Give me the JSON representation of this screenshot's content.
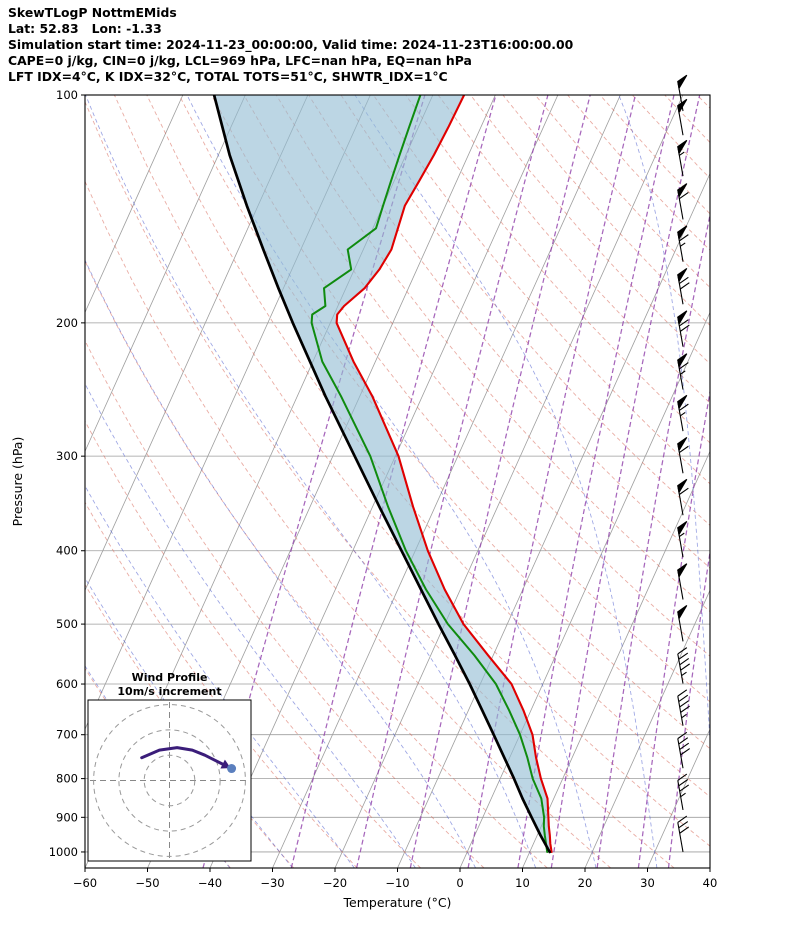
{
  "header": {
    "line1": "SkewTLogP NottmEMids",
    "line2": "Lat: 52.83   Lon: -1.33",
    "line3": "Simulation start time: 2024-11-23_00:00:00, Valid time: 2024-11-23T16:00:00.00",
    "line4": "CAPE=0 j/kg, CIN=0 j/kg, LCL=969 hPa, LFC=nan hPa, EQ=nan hPa",
    "line5": "LFT IDX=4°C, K IDX=32°C, TOTAL TOTS=51°C, SHWTR_IDX=1°C"
  },
  "chart_data": {
    "type": "line",
    "subtype": "skewt_logp",
    "title": "SkewTLogP NottmEMids",
    "xlabel": "Temperature (°C)",
    "ylabel": "Pressure (hPa)",
    "xlim": [
      -60,
      40
    ],
    "p_top": 100,
    "p_bottom": 1050,
    "skew": 0.45,
    "x_ticks": [
      -60,
      -50,
      -40,
      -30,
      -20,
      -10,
      0,
      10,
      20,
      30,
      40
    ],
    "y_ticks": [
      100,
      200,
      300,
      400,
      500,
      600,
      700,
      800,
      900,
      1000
    ],
    "grid": {
      "isobars": {
        "color": "#9e9e9e"
      },
      "isotherms": {
        "start": -100,
        "end": 40,
        "step": 10,
        "color": "#9e9e9e"
      },
      "dry_adiabats": {
        "start": -40,
        "end": 260,
        "step": 10,
        "color": "#d86a5a"
      },
      "moist_adiabats": {
        "start": -40,
        "end": 130,
        "step": 10,
        "color": "#4a5acd"
      },
      "mixing_ratio_g_kg": {
        "values": [
          0.1,
          0.4,
          1,
          2,
          4,
          7,
          10,
          16,
          24,
          32
        ],
        "color": "#9141ab"
      }
    },
    "series": [
      {
        "name": "temperature",
        "color": "#e00000",
        "width": 2.1,
        "pressure_hpa": [
          1000,
          975,
          950,
          925,
          900,
          850,
          800,
          750,
          700,
          650,
          600,
          550,
          500,
          450,
          400,
          350,
          300,
          250,
          225,
          200,
          195,
          190,
          180,
          170,
          160,
          150,
          140,
          130,
          120,
          110,
          100
        ],
        "temp_c": [
          13.5,
          12.7,
          12.0,
          11.2,
          10.5,
          9.0,
          6.5,
          4.2,
          2.0,
          -1.2,
          -5.0,
          -10.8,
          -17.0,
          -22.5,
          -28.0,
          -33.5,
          -39.5,
          -48.0,
          -53.5,
          -59.0,
          -59.5,
          -59.0,
          -57.0,
          -56.0,
          -55.5,
          -56.0,
          -56.5,
          -56.0,
          -55.5,
          -55.2,
          -55.0
        ]
      },
      {
        "name": "dewpoint",
        "color": "#0f8b0f",
        "width": 2.0,
        "pressure_hpa": [
          1000,
          975,
          950,
          925,
          900,
          850,
          800,
          750,
          700,
          650,
          600,
          550,
          500,
          450,
          400,
          350,
          300,
          250,
          225,
          200,
          195,
          190,
          180,
          170,
          160,
          150,
          140,
          130,
          120,
          110,
          100
        ],
        "temp_c": [
          12.8,
          12.0,
          11.2,
          10.4,
          9.8,
          8.0,
          5.2,
          2.8,
          0.0,
          -3.5,
          -7.5,
          -13.0,
          -19.5,
          -25.5,
          -31.5,
          -37.5,
          -44.0,
          -53.0,
          -58.5,
          -63.0,
          -63.5,
          -62.0,
          -63.5,
          -60.5,
          -62.5,
          -59.5,
          -60.0,
          -60.5,
          -61.0,
          -61.5,
          -62.0
        ]
      },
      {
        "name": "parcel",
        "color": "#000000",
        "width": 2.7,
        "pressure_hpa": [
          1000,
          950,
          900,
          850,
          800,
          750,
          700,
          650,
          600,
          550,
          500,
          450,
          400,
          350,
          300,
          250,
          200,
          180,
          160,
          140,
          120,
          100
        ],
        "temp_c": [
          13.2,
          10.5,
          7.8,
          5.0,
          2.2,
          -0.9,
          -4.2,
          -7.8,
          -11.7,
          -16.1,
          -21.0,
          -26.3,
          -32.2,
          -38.9,
          -46.5,
          -55.5,
          -66.0,
          -70.8,
          -76.0,
          -81.8,
          -88.2,
          -95.0
        ]
      }
    ],
    "shading": {
      "between": [
        "parcel",
        "temperature"
      ],
      "color": "#93bdd4",
      "opacity": 0.62
    },
    "wind_barbs_kt": [
      {
        "p": 1000,
        "kt": 30
      },
      {
        "p": 880,
        "kt": 35
      },
      {
        "p": 775,
        "kt": 40
      },
      {
        "p": 681,
        "kt": 45
      },
      {
        "p": 599,
        "kt": 45
      },
      {
        "p": 527,
        "kt": 50
      },
      {
        "p": 464,
        "kt": 50
      },
      {
        "p": 408,
        "kt": 55
      },
      {
        "p": 359,
        "kt": 60
      },
      {
        "p": 316,
        "kt": 60
      },
      {
        "p": 278,
        "kt": 65
      },
      {
        "p": 245,
        "kt": 65
      },
      {
        "p": 215,
        "kt": 70
      },
      {
        "p": 189,
        "kt": 70
      },
      {
        "p": 166,
        "kt": 65
      },
      {
        "p": 146,
        "kt": 60
      },
      {
        "p": 128,
        "kt": 55
      },
      {
        "p": 113,
        "kt": 50
      },
      {
        "p": 105,
        "kt": 50
      }
    ]
  },
  "hodograph": {
    "title_line1": "Wind Profile",
    "title_line2": "10m/s increment",
    "ring_increment_ms": 10,
    "rings_ms": [
      10,
      20,
      30
    ],
    "trace_uv_ms": [
      [
        -11,
        9
      ],
      [
        -4,
        12
      ],
      [
        3,
        13
      ],
      [
        9,
        12
      ],
      [
        14,
        10
      ],
      [
        18,
        8
      ],
      [
        21,
        6.5
      ]
    ],
    "trace_color": "#3b1d7a",
    "marker_color": "#5b7fbe"
  }
}
